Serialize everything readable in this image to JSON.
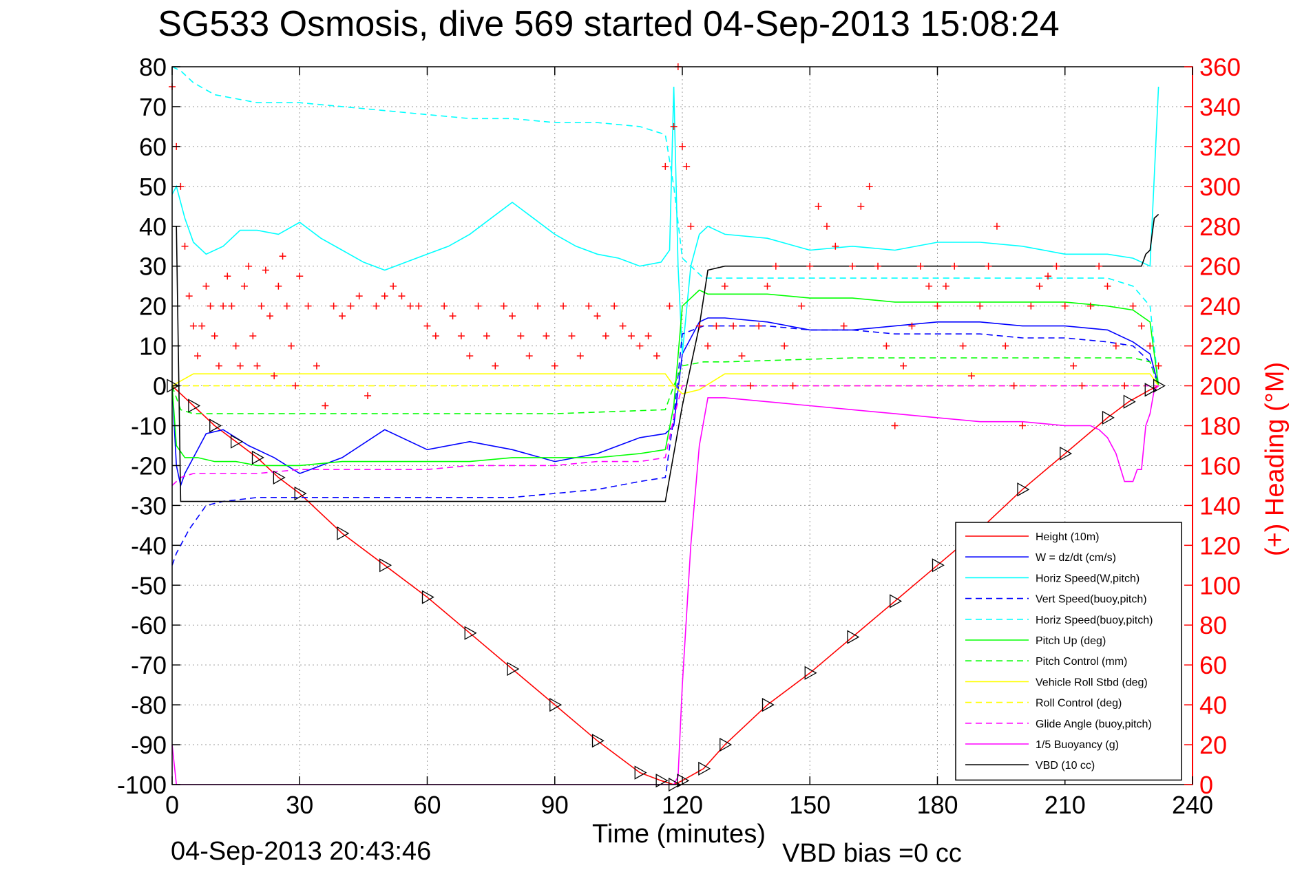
{
  "chart_data": {
    "type": "line",
    "title": "SG533 Osmosis, dive 569 started 04-Sep-2013 15:08:24",
    "xlabel": "Time (minutes)",
    "ylabel_right": "(+) Heading (°M)",
    "footer_left": "04-Sep-2013 20:43:46",
    "footer_right": "VBD bias =0 cc",
    "xlim": [
      0,
      240
    ],
    "ylim": [
      -100,
      80
    ],
    "ylim_right": [
      0,
      360
    ],
    "x_ticks": [
      0,
      30,
      60,
      90,
      120,
      150,
      180,
      210,
      240
    ],
    "y_ticks": [
      -100,
      -90,
      -80,
      -70,
      -60,
      -50,
      -40,
      -30,
      -20,
      -10,
      0,
      10,
      20,
      30,
      40,
      50,
      60,
      70,
      80
    ],
    "y_ticks_right": [
      0,
      20,
      40,
      60,
      80,
      100,
      120,
      140,
      160,
      180,
      200,
      220,
      240,
      260,
      280,
      300,
      320,
      340,
      360
    ],
    "grid": true,
    "legend_position": "bottom-right",
    "colors": {
      "height": "#ff0000",
      "w": "#0000ff",
      "horiz_speed_w": "#00ffff",
      "vert_speed_buoy": "#0000ff",
      "horiz_speed_buoy": "#00ffff",
      "pitch_up": "#00ff00",
      "pitch_control": "#00ff00",
      "roll": "#ffff00",
      "roll_control": "#ffff00",
      "glide_angle": "#ff00ff",
      "buoyancy": "#ff00ff",
      "vbd": "#000000",
      "heading": "#ff0000",
      "right_axis": "#ff0000"
    },
    "series": [
      {
        "name": "Height (10m)",
        "style": "solid",
        "color": "#ff0000",
        "marker": "triangle",
        "x": [
          0,
          5,
          10,
          15,
          20,
          25,
          30,
          40,
          50,
          60,
          70,
          80,
          90,
          100,
          110,
          115,
          118,
          120,
          125,
          130,
          140,
          150,
          160,
          170,
          180,
          190,
          200,
          210,
          220,
          225,
          230,
          232
        ],
        "y": [
          0,
          -5,
          -10,
          -14,
          -18,
          -23,
          -27,
          -37,
          -45,
          -53,
          -62,
          -71,
          -80,
          -89,
          -97,
          -99,
          -100,
          -99,
          -96,
          -90,
          -80,
          -72,
          -63,
          -54,
          -45,
          -36,
          -26,
          -17,
          -8,
          -4,
          -1,
          0
        ]
      },
      {
        "name": "W = dz/dt (cm/s)",
        "style": "solid",
        "color": "#0000ff",
        "x": [
          0,
          1,
          2,
          3,
          5,
          8,
          12,
          18,
          24,
          30,
          40,
          50,
          60,
          70,
          80,
          90,
          100,
          110,
          116,
          118,
          120,
          124,
          126,
          130,
          140,
          150,
          160,
          170,
          180,
          190,
          200,
          210,
          220,
          226,
          230,
          232
        ],
        "y": [
          0,
          -20,
          -25,
          -22,
          -18,
          -12,
          -11,
          -15,
          -18,
          -22,
          -18,
          -11,
          -16,
          -14,
          -16,
          -19,
          -17,
          -13,
          -12,
          -10,
          8,
          16,
          17,
          17,
          16,
          14,
          14,
          15,
          16,
          16,
          15,
          15,
          14,
          11,
          8,
          0
        ]
      },
      {
        "name": "Horiz Speed(W,pitch)",
        "style": "solid",
        "color": "#00ffff",
        "x": [
          0,
          1,
          3,
          5,
          8,
          12,
          16,
          20,
          25,
          30,
          35,
          40,
          45,
          50,
          55,
          60,
          65,
          70,
          75,
          80,
          85,
          90,
          95,
          100,
          105,
          110,
          115,
          117,
          118,
          119,
          120,
          122,
          124,
          126,
          130,
          140,
          150,
          160,
          170,
          180,
          190,
          200,
          210,
          220,
          226,
          230,
          232
        ],
        "y": [
          48,
          50,
          42,
          36,
          33,
          35,
          39,
          39,
          38,
          41,
          37,
          34,
          31,
          29,
          31,
          33,
          35,
          38,
          42,
          46,
          42,
          38,
          35,
          33,
          32,
          30,
          31,
          34,
          75,
          30,
          8,
          30,
          38,
          40,
          38,
          37,
          34,
          35,
          34,
          36,
          36,
          35,
          33,
          33,
          32,
          30,
          75
        ]
      },
      {
        "name": "Vert Speed(buoy,pitch)",
        "style": "dashed",
        "color": "#0000ff",
        "x": [
          0,
          1,
          2,
          4,
          8,
          12,
          20,
          30,
          40,
          50,
          60,
          70,
          80,
          90,
          100,
          110,
          116,
          118,
          120,
          125,
          130,
          140,
          150,
          160,
          170,
          180,
          190,
          200,
          210,
          220,
          226,
          230,
          232
        ],
        "y": [
          -45,
          -42,
          -40,
          -36,
          -30,
          -29,
          -28,
          -28,
          -28,
          -28,
          -28,
          -28,
          -28,
          -27,
          -26,
          -24,
          -23,
          -8,
          13,
          15,
          15,
          15,
          14,
          14,
          13,
          13,
          13,
          12,
          12,
          11,
          10,
          6,
          0
        ]
      },
      {
        "name": "Horiz Speed(buoy,pitch)",
        "style": "dashed",
        "color": "#00ffff",
        "x": [
          0,
          2,
          5,
          10,
          20,
          30,
          40,
          50,
          60,
          70,
          80,
          90,
          100,
          110,
          116,
          118,
          120,
          125,
          130,
          140,
          150,
          160,
          170,
          180,
          190,
          200,
          210,
          220,
          226,
          230,
          232
        ],
        "y": [
          80,
          79,
          76,
          73,
          71,
          71,
          70,
          69,
          68,
          67,
          67,
          66,
          66,
          65,
          63,
          50,
          32,
          27,
          27,
          27,
          27,
          27,
          27,
          27,
          27,
          27,
          27,
          27,
          25,
          20,
          0
        ]
      },
      {
        "name": "Pitch Up (deg)",
        "style": "solid",
        "color": "#00ff00",
        "x": [
          0,
          1,
          3,
          6,
          10,
          15,
          20,
          30,
          40,
          50,
          60,
          70,
          80,
          90,
          100,
          110,
          116,
          118,
          120,
          124,
          126,
          130,
          140,
          150,
          160,
          170,
          180,
          190,
          200,
          210,
          220,
          226,
          230,
          232
        ],
        "y": [
          0,
          -15,
          -18,
          -18,
          -19,
          -19,
          -20,
          -20,
          -19,
          -19,
          -19,
          -19,
          -18,
          -18,
          -18,
          -17,
          -16,
          -5,
          20,
          24,
          23,
          23,
          23,
          22,
          22,
          21,
          21,
          21,
          21,
          21,
          20,
          19,
          16,
          0
        ]
      },
      {
        "name": "Pitch Control (mm)",
        "style": "dashed",
        "color": "#00ff00",
        "x": [
          0,
          2,
          5,
          10,
          30,
          60,
          90,
          116,
          118,
          120,
          125,
          130,
          160,
          190,
          220,
          226,
          230,
          232
        ],
        "y": [
          0,
          -6,
          -7,
          -7,
          -7,
          -7,
          -7,
          -6,
          0,
          5,
          6,
          6,
          7,
          7,
          7,
          7,
          6,
          0
        ]
      },
      {
        "name": "Vehicle Roll Stbd (deg)",
        "style": "solid",
        "color": "#ffff00",
        "x": [
          0,
          5,
          10,
          20,
          30,
          40,
          50,
          60,
          70,
          80,
          90,
          100,
          110,
          116,
          118,
          120,
          124,
          130,
          140,
          150,
          160,
          170,
          180,
          190,
          200,
          210,
          220,
          230,
          232
        ],
        "y": [
          0,
          3,
          3,
          3,
          3,
          3,
          3,
          3,
          3,
          3,
          3,
          3,
          3,
          3,
          0,
          -2,
          -1,
          3,
          3,
          3,
          3,
          3,
          3,
          3,
          3,
          3,
          3,
          3,
          0
        ]
      },
      {
        "name": "Roll Control (deg)",
        "style": "dashed",
        "color": "#ffff00",
        "x": [
          0,
          10,
          30,
          60,
          90,
          116,
          120,
          150,
          180,
          210,
          232
        ],
        "y": [
          0,
          0,
          0,
          0,
          0,
          0,
          0,
          0,
          0,
          0,
          0
        ]
      },
      {
        "name": "Glide Angle (buoy,pitch)",
        "style": "dashed",
        "color": "#ff00ff",
        "x": [
          0,
          2,
          5,
          10,
          20,
          30,
          40,
          50,
          60,
          70,
          80,
          90,
          100,
          110,
          116,
          118,
          120,
          125,
          150,
          180,
          210,
          226,
          230,
          232
        ],
        "y": [
          -25,
          -23,
          -22,
          -22,
          -22,
          -21,
          -21,
          -21,
          -21,
          -20,
          -20,
          -20,
          -19,
          -19,
          -18,
          -8,
          0,
          0,
          0,
          0,
          0,
          0,
          0,
          0
        ]
      },
      {
        "name": "1/5 Buoyancy (g)",
        "style": "solid",
        "color": "#ff00ff",
        "x": [
          0,
          0.5,
          1,
          2,
          116,
          117,
          118,
          119,
          120,
          122,
          124,
          126,
          130,
          140,
          150,
          160,
          170,
          180,
          190,
          200,
          210,
          216,
          218,
          220,
          222,
          224,
          226,
          227,
          228,
          229,
          230,
          231,
          232
        ],
        "y": [
          -90,
          -95,
          -100,
          -100,
          -100,
          -100,
          -100,
          -98,
          -75,
          -40,
          -15,
          -3,
          -3,
          -4,
          -5,
          -6,
          -7,
          -8,
          -9,
          -9,
          -10,
          -10,
          -11,
          -13,
          -17,
          -24,
          -24,
          -21,
          -21,
          -10,
          -7,
          -1,
          0
        ]
      },
      {
        "name": "VBD (10 cc)",
        "style": "solid",
        "color": "#000000",
        "x": [
          0,
          1,
          2,
          5,
          20,
          50,
          80,
          100,
          116,
          120,
          124,
          126,
          130,
          160,
          190,
          220,
          228,
          229,
          230,
          231,
          232
        ],
        "y": [
          40,
          40,
          -29,
          -29,
          -29,
          -29,
          -29,
          -29,
          -29,
          -5,
          15,
          29,
          30,
          30,
          30,
          30,
          30,
          33,
          34,
          42,
          43
        ]
      }
    ],
    "heading_series": {
      "name": "(+) Heading (°M)",
      "color": "#ff0000",
      "marker": "+",
      "axis": "right",
      "x": [
        0,
        1,
        2,
        3,
        4,
        5,
        6,
        7,
        8,
        9,
        10,
        11,
        12,
        13,
        14,
        15,
        16,
        17,
        18,
        19,
        20,
        21,
        22,
        23,
        24,
        25,
        26,
        27,
        28,
        29,
        30,
        32,
        34,
        36,
        38,
        40,
        42,
        44,
        46,
        48,
        50,
        52,
        54,
        56,
        58,
        60,
        62,
        64,
        66,
        68,
        70,
        72,
        74,
        76,
        78,
        80,
        82,
        84,
        86,
        88,
        90,
        92,
        94,
        96,
        98,
        100,
        102,
        104,
        106,
        108,
        110,
        112,
        114,
        116,
        117,
        118,
        119,
        120,
        121,
        122,
        124,
        126,
        128,
        130,
        132,
        134,
        136,
        138,
        140,
        142,
        144,
        146,
        148,
        150,
        152,
        154,
        156,
        158,
        160,
        162,
        164,
        166,
        168,
        170,
        172,
        174,
        176,
        178,
        180,
        182,
        184,
        186,
        188,
        190,
        192,
        194,
        196,
        198,
        200,
        202,
        204,
        206,
        208,
        210,
        212,
        214,
        216,
        218,
        220,
        222,
        224,
        226,
        228,
        230,
        232
      ],
      "y": [
        350,
        320,
        300,
        270,
        245,
        230,
        215,
        230,
        250,
        240,
        225,
        210,
        240,
        255,
        240,
        220,
        210,
        250,
        260,
        225,
        210,
        240,
        258,
        235,
        205,
        250,
        265,
        240,
        220,
        200,
        255,
        240,
        210,
        190,
        240,
        235,
        240,
        245,
        195,
        240,
        245,
        250,
        245,
        240,
        240,
        230,
        225,
        240,
        235,
        225,
        215,
        240,
        225,
        210,
        240,
        235,
        225,
        215,
        240,
        225,
        210,
        240,
        225,
        215,
        240,
        235,
        225,
        240,
        230,
        225,
        220,
        225,
        215,
        310,
        240,
        330,
        360,
        320,
        310,
        280,
        230,
        220,
        230,
        250,
        230,
        215,
        200,
        230,
        250,
        260,
        220,
        200,
        240,
        260,
        290,
        280,
        270,
        230,
        260,
        290,
        300,
        260,
        220,
        180,
        210,
        230,
        260,
        250,
        240,
        250,
        260,
        220,
        205,
        240,
        260,
        280,
        220,
        200,
        180,
        240,
        250,
        255,
        260,
        240,
        210,
        200,
        240,
        260,
        250,
        220,
        200,
        240,
        230,
        220,
        210
      ]
    }
  }
}
